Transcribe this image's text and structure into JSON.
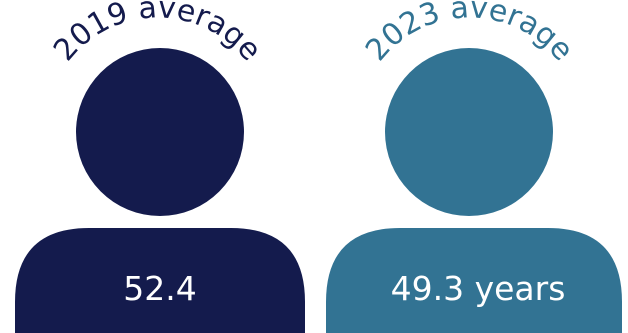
{
  "colors": {
    "figure_2019": "#141b4d",
    "figure_2023": "#327393"
  },
  "figures": [
    {
      "label": "2019 average",
      "value": "52.4"
    },
    {
      "label": "2023 average",
      "value": "49.3 years"
    }
  ]
}
